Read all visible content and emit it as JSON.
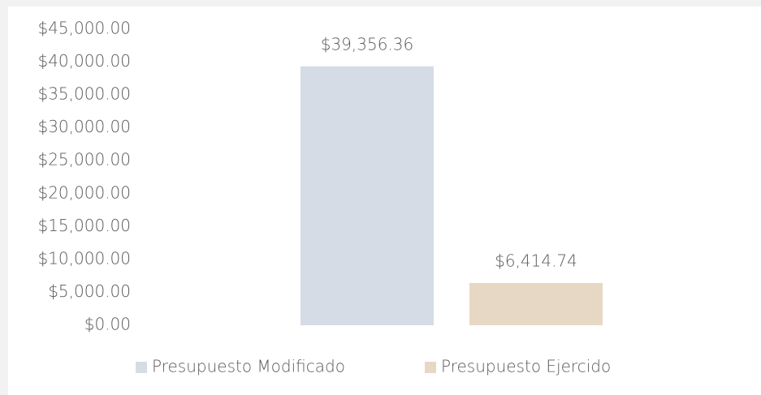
{
  "chart_data": {
    "type": "bar",
    "categories": [
      null
    ],
    "series": [
      {
        "name": "Presupuesto Modificado",
        "color": "#d6dce5",
        "values": [
          39356.36
        ],
        "value_labels": [
          "$39,356.36"
        ]
      },
      {
        "name": "Presupuesto Ejercido",
        "color": "#e7d8c5",
        "values": [
          6414.74
        ],
        "value_labels": [
          "$6,414.74"
        ]
      }
    ],
    "ylim": [
      0,
      45000
    ],
    "yticks": [
      {
        "value": 0,
        "label": "$0.00"
      },
      {
        "value": 5000,
        "label": "$5,000.00"
      },
      {
        "value": 10000,
        "label": "$10,000.00"
      },
      {
        "value": 15000,
        "label": "$15,000.00"
      },
      {
        "value": 20000,
        "label": "$20,000.00"
      },
      {
        "value": 25000,
        "label": "$25,000.00"
      },
      {
        "value": 30000,
        "label": "$30,000.00"
      },
      {
        "value": 35000,
        "label": "$35,000.00"
      },
      {
        "value": 40000,
        "label": "$40,000.00"
      },
      {
        "value": 45000,
        "label": "$45,000.00"
      }
    ],
    "grid": false,
    "legend": "bottom"
  }
}
